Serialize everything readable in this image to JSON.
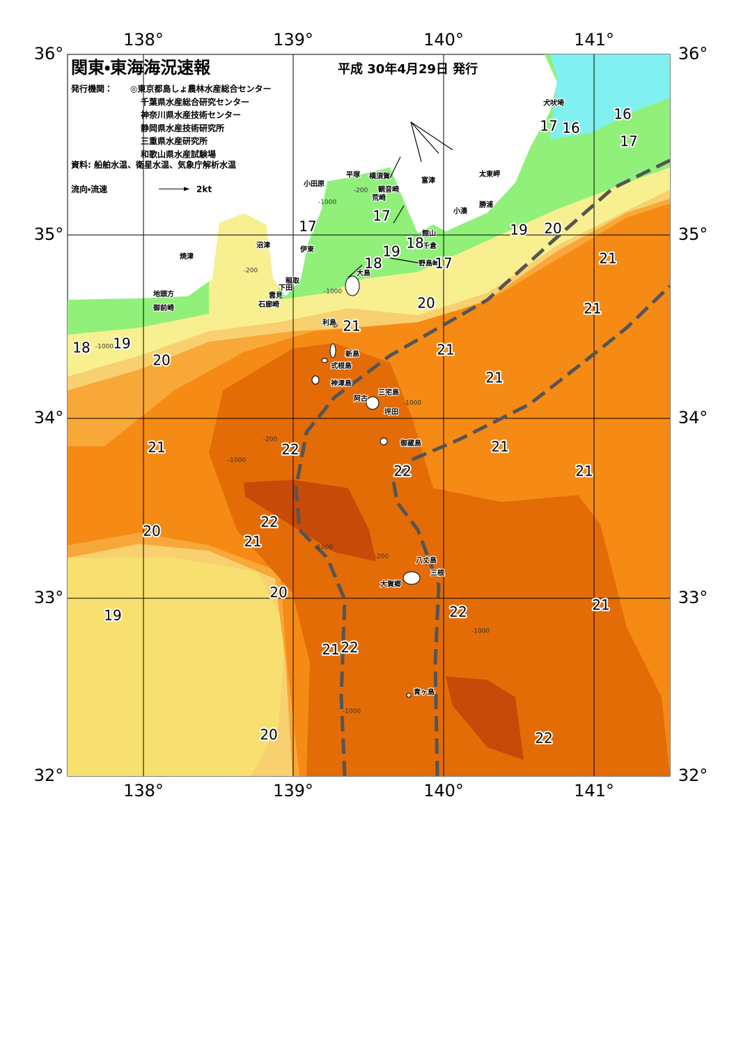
{
  "header": {
    "title": "関東・東海海況速報",
    "date": "平成 30年4月29日 発行",
    "issuer_label": "発行機関：",
    "issuers": [
      "◎東京都島しょ農林水産総合センター",
      "千葉県水産総合研究センター",
      "神奈川県水産技術センター",
      "静岡県水産技術研究所",
      "三重県水産研究所",
      "和歌山県水産試験場"
    ],
    "source": "資料: 船舶水温、衛星水温、気象庁解析水温",
    "legend_label": "流向・流速",
    "legend_scale": "2kt"
  },
  "map": {
    "lon_labels": [
      "138°",
      "139°",
      "140°",
      "141°"
    ],
    "lat_labels": [
      "36°",
      "35°",
      "34°",
      "33°",
      "32°"
    ],
    "places": [
      "犬吠埼",
      "太東岬",
      "勝浦",
      "小湊",
      "館山",
      "千倉",
      "野島崎",
      "富津",
      "観音崎",
      "横須賀",
      "荒崎",
      "平塚",
      "小田原",
      "沼津",
      "伊東",
      "焼津",
      "稲取",
      "下田",
      "雲見",
      "石廊崎",
      "地頭方",
      "御前崎",
      "大島",
      "利島",
      "新島",
      "式根島",
      "神津島",
      "三宅島",
      "阿古",
      "坪田",
      "御蔵島",
      "八丈島",
      "三根",
      "大賀郷",
      "青ヶ島"
    ],
    "isotherm_labels": [
      "16",
      "16",
      "17",
      "17",
      "17",
      "17",
      "18",
      "18",
      "19",
      "17",
      "19",
      "20",
      "21",
      "20",
      "21",
      "21",
      "21",
      "21",
      "18",
      "19",
      "20",
      "21",
      "22",
      "22",
      "21",
      "21",
      "22",
      "20",
      "21",
      "20",
      "19",
      "22",
      "21",
      "21",
      "22",
      "20",
      "22"
    ],
    "depth_labels": [
      "-200",
      "-1000",
      "-200",
      "-1000",
      "-1000",
      "-200",
      "-1000",
      "-1000",
      "-1000",
      "-200",
      "-1000",
      "-1000"
    ]
  }
}
